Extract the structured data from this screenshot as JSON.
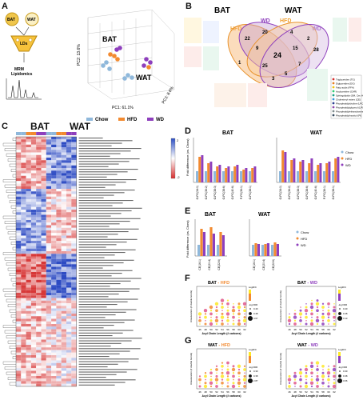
{
  "panels": {
    "A": "A",
    "B": "B",
    "C": "C",
    "D": "D",
    "E": "E",
    "F": "F",
    "G": "G"
  },
  "colors": {
    "chow": "#8fb8db",
    "hfd": "#f28a30",
    "wd": "#8e3fbd",
    "bat_gold": "#f0c64c",
    "heat_hi": "#2d4fc4",
    "heat_lo": "#d62d2d"
  },
  "panelA": {
    "labels": {
      "bat": "BAT",
      "wat": "WAT",
      "lds": "LDs",
      "mrm": "MRM",
      "lip": "Lipidomics"
    },
    "plot": {
      "bat": "BAT",
      "wat": "WAT",
      "pc1": "PC1: 61.1%",
      "pc2": "PC2: 13.6%",
      "pc3": "PC3: 8.6%"
    },
    "legend": [
      {
        "name": "Chow",
        "color": "#8fb8db"
      },
      {
        "name": "HFD",
        "color": "#f28a30"
      },
      {
        "name": "WD",
        "color": "#8e3fbd"
      }
    ]
  },
  "panelB": {
    "bat": "BAT",
    "wat": "WAT",
    "hfd_l": "HFD",
    "wd_l": "WD",
    "hfd_r": "HFD",
    "wd_r": "WD",
    "counts": [
      "22",
      "20",
      "4",
      "2",
      "24",
      "9",
      "25",
      "15",
      "28",
      "1",
      "7",
      "3",
      "5",
      "24"
    ],
    "center": "24",
    "legend": [
      {
        "name": "Triglycerides (TG)",
        "color": "#d62d2d"
      },
      {
        "name": "Diglycerides (DG)",
        "color": "#e67e22"
      },
      {
        "name": "Fatty acids (FFA)",
        "color": "#f1c40f"
      },
      {
        "name": "Acylcarnitine (CAR)",
        "color": "#2ecc71"
      },
      {
        "name": "Sphingolipids (SM, Cer, HexCer)",
        "color": "#16a085"
      },
      {
        "name": "Cholesteryl esters (CE)",
        "color": "#3498db"
      },
      {
        "name": "Phosphatidylcholine (LPC,PC,O-PC)",
        "color": "#2c3e90"
      },
      {
        "name": "Phosphatidylglycerol (LPG,PG)",
        "color": "#8e44ad"
      },
      {
        "name": "Phosphatidylethanolamine (LPE,PE)",
        "color": "#7f8c8d"
      },
      {
        "name": "Phosphatidylinositol (PI)",
        "color": "#34495e"
      }
    ]
  },
  "panelC": {
    "bat": "BAT",
    "wat": "WAT",
    "scale_hi": "2",
    "scale_lo": "-2"
  },
  "panelD": {
    "bat": "BAT",
    "wat": "WAT",
    "ylabel": "Fold difference (vs. Chow)",
    "ticks": [
      "O-PC(34:0)",
      "O-PC(36:2)",
      "O-PC(38:3)",
      "O-PC(38:6)",
      "O-PC(40:6)",
      "P-PC(36:1)",
      "O-PC(38:1)"
    ],
    "legend": [
      "Chow",
      "HFD",
      "WD"
    ]
  },
  "panelE": {
    "bat": "BAT",
    "wat": "WAT",
    "ylabel": "Fold difference (vs. Chow)",
    "ticks": [
      "CE(16:1)",
      "CE(20:4)",
      "CE(22:6)"
    ],
    "legend": [
      "Chow",
      "HFD",
      "WD"
    ]
  },
  "panelF": {
    "left_title_a": "BAT",
    "left_title_b": " - HFD",
    "right_title_a": "BAT",
    "right_title_b": " - WD",
    "xlabel": "Acyl Chain Length (# carbons)",
    "ylabel": "Unsaturation (# double bonds)",
    "legend_fc": "Log2FC",
    "legend_fdr": "-log FDR",
    "xticks": [
      "46",
      "48",
      "50",
      "52",
      "54",
      "56",
      "58",
      "60",
      "62"
    ],
    "fdr_left": [
      "0.40",
      "0.48",
      "4.67"
    ],
    "fdr_right": [
      "0.40",
      "0.48",
      "3.13"
    ]
  },
  "panelG": {
    "left_title_a": "WAT",
    "left_title_b": " - HFD",
    "right_title_a": "WAT",
    "right_title_b": " - WD",
    "xlabel": "Acyl Chain Length (# carbons)",
    "ylabel": "Unsaturation (# double bonds)",
    "legend_fc": "Log2FC",
    "legend_fdr": "-log FDR",
    "xticks": [
      "46",
      "48",
      "50",
      "52",
      "54",
      "56",
      "58",
      "60",
      "62"
    ],
    "fdr_left": [
      "0.30",
      "0.38",
      "2.87"
    ],
    "fdr_right": [
      "0.30",
      "0.38",
      "3.06"
    ]
  }
}
